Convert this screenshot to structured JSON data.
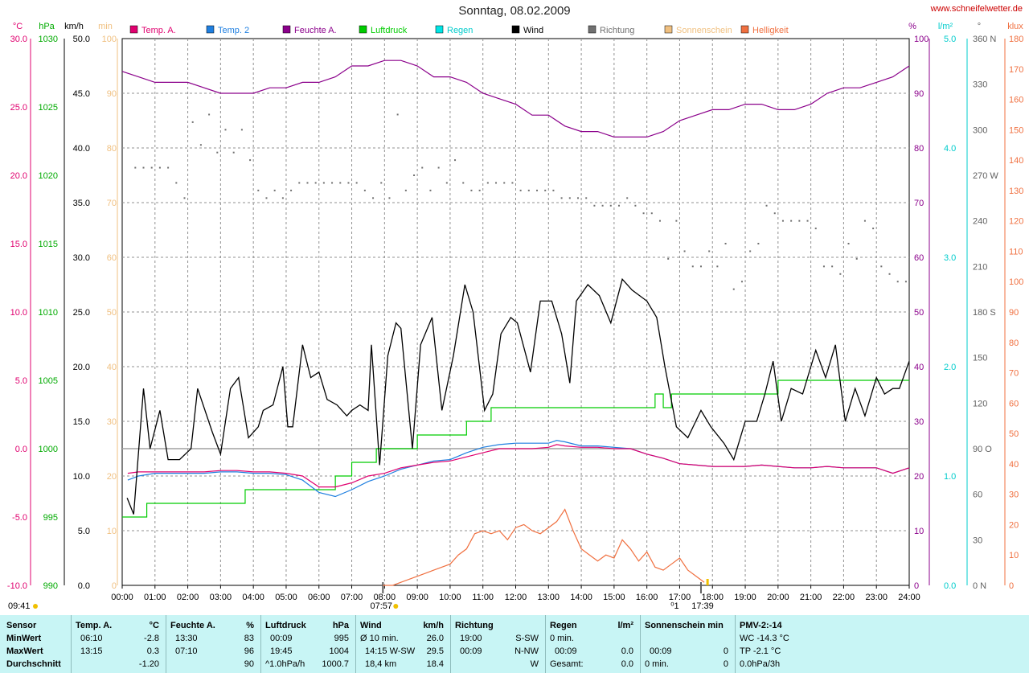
{
  "title": "Sonntag, 08.02.2009",
  "site": "www.schneifelwetter.de",
  "colors": {
    "temp_a": "#e0006f",
    "temp_2": "#1f7fe0",
    "feuchte": "#8b008b",
    "luftdruck": "#00cc00",
    "regen": "#00e5e5",
    "wind": "#000000",
    "richtung": "#707070",
    "sonnenschein": "#f0c080",
    "helligkeit": "#f07040"
  },
  "legend": [
    {
      "label": "Temp. A.",
      "color": "#e0006f"
    },
    {
      "label": "Temp. 2",
      "color": "#1f7fe0"
    },
    {
      "label": "Feuchte A.",
      "color": "#8b008b"
    },
    {
      "label": "Luftdruck",
      "color": "#00cc00"
    },
    {
      "label": "Regen",
      "color": "#00e5e5"
    },
    {
      "label": "Wind",
      "color": "#000000"
    },
    {
      "label": "Richtung",
      "color": "#707070"
    },
    {
      "label": "Sonnenschein",
      "color": "#f0c080"
    },
    {
      "label": "Helligkeit",
      "color": "#f07040"
    }
  ],
  "axis_units": {
    "temp": "°C",
    "pressure": "hPa",
    "wind": "km/h",
    "sun": "min",
    "humidity": "%",
    "rain": "l/m²",
    "direction": "°",
    "light": "klux"
  },
  "axis_ticks": {
    "temp": [
      "30.0",
      "25.0",
      "20.0",
      "15.0",
      "10.0",
      "5.0",
      "0.0",
      "-5.0",
      "-10.0"
    ],
    "pressure": [
      "1030",
      "1025",
      "1020",
      "1015",
      "1010",
      "1005",
      "1000",
      "995",
      "990"
    ],
    "wind": [
      "50.0",
      "45.0",
      "40.0",
      "35.0",
      "30.0",
      "25.0",
      "20.0",
      "15.0",
      "10.0",
      "5.0",
      "0.0"
    ],
    "sun": [
      "100",
      "90",
      "80",
      "70",
      "60",
      "50",
      "40",
      "30",
      "20",
      "10",
      "0"
    ],
    "humidity": [
      "100",
      "90",
      "80",
      "70",
      "60",
      "50",
      "40",
      "30",
      "20",
      "10",
      "0"
    ],
    "rain": [
      "5.0",
      "4.0",
      "3.0",
      "2.0",
      "1.0",
      "0.0"
    ],
    "direction": [
      "360 N",
      "330",
      "300",
      "270 W",
      "240",
      "210",
      "180 S",
      "150",
      "120",
      "90 O",
      "60",
      "30",
      "0 N"
    ],
    "light": [
      "180",
      "170",
      "160",
      "150",
      "140",
      "130",
      "120",
      "110",
      "100",
      "90",
      "80",
      "70",
      "60",
      "50",
      "40",
      "30",
      "20",
      "10",
      "0"
    ]
  },
  "x_ticks": [
    "00:00",
    "01:00",
    "02:00",
    "03:00",
    "04:00",
    "05:00",
    "06:00",
    "07:00",
    "08:00",
    "09:00",
    "10:00",
    "11:00",
    "12:00",
    "13:00",
    "14:00",
    "15:00",
    "16:00",
    "17:00",
    "18:00",
    "19:00",
    "20:00",
    "21:00",
    "22:00",
    "23:00",
    "24:00"
  ],
  "time_notes": {
    "left": "09:41",
    "sunrise": "07:57",
    "sunset": "17:39",
    "moon_mark": "⁰1"
  },
  "chart_data": {
    "type": "line",
    "x_unit": "hour of day",
    "xlim": [
      0,
      24
    ],
    "series": [
      {
        "name": "Temp. A.",
        "axis": "°C",
        "ylim": [
          -10,
          30
        ],
        "x": [
          0.17,
          0.5,
          1,
          1.5,
          2,
          2.5,
          3,
          3.5,
          4,
          4.5,
          5,
          5.5,
          6,
          6.5,
          7,
          7.5,
          8,
          8.5,
          9,
          9.5,
          10,
          10.5,
          11,
          11.5,
          12,
          12.5,
          13,
          13.25,
          13.5,
          14,
          14.5,
          15,
          15.5,
          16,
          16.5,
          17,
          17.5,
          18,
          18.5,
          19,
          19.5,
          20,
          20.5,
          21,
          21.5,
          22,
          22.5,
          23,
          23.5,
          24
        ],
        "y": [
          -1.8,
          -1.7,
          -1.7,
          -1.7,
          -1.7,
          -1.7,
          -1.6,
          -1.6,
          -1.7,
          -1.7,
          -1.8,
          -2.0,
          -2.8,
          -2.8,
          -2.5,
          -2.0,
          -1.8,
          -1.4,
          -1.2,
          -1.0,
          -0.9,
          -0.6,
          -0.3,
          0.0,
          0.0,
          0.0,
          0.1,
          0.3,
          0.2,
          0.1,
          0.1,
          0.0,
          0.0,
          -0.4,
          -0.7,
          -1.1,
          -1.2,
          -1.3,
          -1.3,
          -1.3,
          -1.2,
          -1.3,
          -1.4,
          -1.4,
          -1.3,
          -1.4,
          -1.4,
          -1.4,
          -1.8,
          -1.4
        ]
      },
      {
        "name": "Temp. 2",
        "axis": "°C",
        "ylim": [
          -10,
          30
        ],
        "x": [
          0.17,
          0.5,
          1,
          1.5,
          2,
          2.5,
          3,
          3.5,
          4,
          4.5,
          5,
          5.5,
          6,
          6.5,
          7,
          7.5,
          8,
          8.5,
          9,
          9.5,
          10,
          10.5,
          11,
          11.5,
          12,
          12.5,
          13,
          13.25,
          13.5,
          14,
          14.5,
          15,
          15.5,
          16,
          16.5,
          17,
          17.5,
          18,
          18.5,
          19,
          19.5,
          20,
          20.5,
          21,
          21.5,
          22,
          22.5,
          23,
          23.5,
          24
        ],
        "y": [
          -2.3,
          -2.0,
          -1.8,
          -1.8,
          -1.8,
          -1.8,
          -1.7,
          -1.7,
          -1.8,
          -1.8,
          -1.9,
          -2.3,
          -3.2,
          -3.5,
          -3.0,
          -2.4,
          -2.0,
          -1.5,
          -1.2,
          -0.9,
          -0.8,
          -0.3,
          0.1,
          0.3,
          0.4,
          0.4,
          0.4,
          0.6,
          0.5,
          0.2,
          0.2,
          0.1,
          0.0,
          -0.4,
          -0.7,
          -1.1,
          -1.2,
          -1.3,
          -1.3,
          -1.3,
          -1.2,
          -1.3,
          -1.4,
          -1.4,
          -1.3,
          -1.4,
          -1.4,
          -1.4,
          -1.8,
          -1.4
        ]
      },
      {
        "name": "Feuchte A.",
        "axis": "%",
        "ylim": [
          0,
          100
        ],
        "x": [
          0,
          0.5,
          1,
          1.5,
          2,
          2.5,
          3,
          3.5,
          4,
          4.5,
          5,
          5.5,
          6,
          6.5,
          7,
          7.5,
          8,
          8.5,
          9,
          9.5,
          10,
          10.5,
          11,
          11.5,
          12,
          12.5,
          13,
          13.5,
          14,
          14.5,
          15,
          15.5,
          16,
          16.5,
          17,
          17.5,
          18,
          18.5,
          19,
          19.5,
          20,
          20.5,
          21,
          21.5,
          22,
          22.5,
          23,
          23.5,
          24
        ],
        "y": [
          94,
          93,
          92,
          92,
          92,
          91,
          90,
          90,
          90,
          91,
          91,
          92,
          92,
          93,
          95,
          95,
          96,
          96,
          95,
          93,
          93,
          92,
          90,
          89,
          88,
          86,
          86,
          84,
          83,
          83,
          82,
          82,
          82,
          83,
          85,
          86,
          87,
          87,
          88,
          88,
          87,
          87,
          88,
          90,
          91,
          91,
          92,
          93,
          95
        ]
      },
      {
        "name": "Luftdruck",
        "axis": "hPa",
        "ylim": [
          990,
          1030
        ],
        "x": [
          0,
          0.5,
          0.75,
          2,
          3,
          3.75,
          4,
          5,
          6,
          6.25,
          6.5,
          7,
          7.25,
          7.75,
          8,
          8.5,
          9,
          9.75,
          10,
          10.5,
          11,
          11.25,
          11.5,
          12,
          13,
          14,
          15,
          15.5,
          16,
          16.25,
          16.5,
          16.75,
          17,
          18,
          19,
          19.5,
          19.75,
          20,
          20.5,
          21,
          22,
          23,
          24
        ],
        "y": [
          995,
          995,
          996,
          996,
          996,
          997,
          997,
          997,
          997,
          997,
          998,
          999,
          999,
          1000,
          1000,
          1000,
          1001,
          1001,
          1001,
          1002,
          1002,
          1003,
          1003,
          1003,
          1003,
          1003,
          1003,
          1003,
          1003,
          1004,
          1003,
          1004,
          1004,
          1004,
          1004,
          1004,
          1004,
          1005,
          1005,
          1005,
          1005,
          1005,
          1005
        ]
      },
      {
        "name": "Wind",
        "axis": "km/h",
        "ylim": [
          0,
          50
        ],
        "x": [
          0.15,
          0.35,
          0.65,
          0.85,
          1.15,
          1.4,
          1.75,
          2.1,
          2.3,
          2.75,
          3.0,
          3.3,
          3.55,
          3.85,
          4.15,
          4.3,
          4.6,
          4.9,
          5.05,
          5.2,
          5.5,
          5.75,
          6.0,
          6.25,
          6.55,
          6.85,
          7.0,
          7.25,
          7.5,
          7.6,
          7.85,
          8.1,
          8.35,
          8.5,
          8.85,
          9.1,
          9.45,
          9.75,
          10.1,
          10.45,
          10.7,
          11.05,
          11.3,
          11.55,
          11.85,
          12.05,
          12.45,
          12.75,
          13.1,
          13.4,
          13.65,
          13.85,
          14.2,
          14.55,
          14.9,
          15.25,
          15.55,
          16.0,
          16.3,
          16.55,
          16.9,
          17.25,
          17.65,
          17.95,
          18.35,
          18.65,
          19.0,
          19.35,
          19.6,
          19.85,
          20.1,
          20.4,
          20.75,
          21.15,
          21.45,
          21.75,
          22.05,
          22.35,
          22.65,
          23.0,
          23.25,
          23.5,
          23.7,
          24.0
        ],
        "y": [
          8,
          6.5,
          18,
          12.5,
          16,
          11.5,
          11.5,
          12.5,
          18,
          14,
          12,
          18,
          19,
          13.5,
          14.5,
          16,
          16.5,
          20,
          14.5,
          14.5,
          22,
          19,
          19.5,
          17,
          16.5,
          15.5,
          16,
          16.5,
          16,
          22,
          11,
          21,
          24,
          23.5,
          12.5,
          22,
          24.5,
          16,
          21,
          27.5,
          25,
          16,
          17.5,
          23,
          24.5,
          24,
          19.5,
          26,
          26,
          23,
          18.5,
          26,
          27.5,
          26.5,
          24,
          28,
          27,
          26,
          24.5,
          20,
          14.5,
          13.5,
          16,
          14.5,
          13,
          11.5,
          15,
          15,
          17.5,
          20.5,
          15,
          18,
          17.5,
          21.5,
          19,
          22,
          15,
          18,
          15.5,
          19,
          17.5,
          18,
          18,
          20.5
        ]
      },
      {
        "name": "Richtung",
        "axis": "°",
        "ylim": [
          0,
          360
        ],
        "x": [
          0.4,
          0.65,
          0.9,
          1.15,
          1.4,
          1.65,
          1.9,
          2.15,
          2.4,
          2.65,
          2.9,
          3.15,
          3.4,
          3.65,
          3.9,
          4.15,
          4.4,
          4.65,
          4.9,
          5.15,
          5.4,
          5.65,
          5.9,
          6.15,
          6.4,
          6.65,
          6.9,
          7.15,
          7.4,
          7.65,
          7.9,
          8.15,
          8.4,
          8.65,
          8.9,
          9.15,
          9.4,
          9.65,
          9.9,
          10.15,
          10.4,
          10.65,
          10.9,
          11.15,
          11.4,
          11.65,
          11.9,
          12.15,
          12.4,
          12.65,
          12.9,
          13.15,
          13.4,
          13.65,
          13.9,
          14.15,
          14.4,
          14.65,
          14.9,
          15.15,
          15.4,
          15.65,
          15.9,
          16.15,
          16.4,
          16.65,
          16.9,
          17.15,
          17.4,
          17.65,
          17.9,
          18.15,
          18.4,
          18.65,
          18.9,
          19.15,
          19.4,
          19.65,
          19.9,
          20.15,
          20.4,
          20.65,
          20.9,
          21.15,
          21.4,
          21.65,
          21.9,
          22.15,
          22.4,
          22.65,
          22.9,
          23.15,
          23.4,
          23.65,
          23.9
        ],
        "y": [
          275,
          275,
          275,
          275,
          275,
          265,
          255,
          305,
          290,
          310,
          285,
          300,
          285,
          300,
          280,
          260,
          255,
          260,
          255,
          260,
          265,
          265,
          265,
          265,
          265,
          265,
          265,
          265,
          260,
          255,
          265,
          255,
          310,
          260,
          270,
          275,
          260,
          275,
          265,
          280,
          265,
          260,
          260,
          265,
          265,
          265,
          265,
          260,
          260,
          260,
          260,
          260,
          255,
          255,
          255,
          255,
          250,
          250,
          250,
          250,
          255,
          250,
          245,
          245,
          240,
          215,
          240,
          220,
          210,
          210,
          220,
          210,
          225,
          195,
          200,
          220,
          225,
          250,
          245,
          240,
          240,
          240,
          240,
          235,
          210,
          210,
          205,
          225,
          215,
          240,
          235,
          210,
          205,
          200,
          200
        ]
      },
      {
        "name": "Helligkeit",
        "axis": "klux",
        "ylim": [
          0,
          180
        ],
        "x": [
          7.95,
          8.25,
          8.5,
          8.75,
          9.0,
          9.25,
          9.5,
          9.75,
          10.0,
          10.25,
          10.5,
          10.75,
          11.0,
          11.25,
          11.5,
          11.75,
          12.0,
          12.25,
          12.5,
          12.75,
          13.0,
          13.25,
          13.5,
          13.75,
          14.0,
          14.25,
          14.5,
          14.75,
          15.0,
          15.25,
          15.5,
          15.75,
          16.0,
          16.25,
          16.5,
          16.75,
          17.0,
          17.25,
          17.5,
          17.75
        ],
        "y": [
          0,
          0,
          1,
          2,
          3,
          4,
          5,
          6,
          7,
          10,
          12,
          17,
          18,
          17,
          18,
          15,
          19,
          20,
          18,
          17,
          19,
          21,
          25,
          18,
          12,
          10,
          8,
          10,
          9,
          15,
          12,
          8,
          11,
          6,
          5,
          7,
          9,
          5,
          3,
          1
        ]
      }
    ],
    "title": "Sonntag, 08.02.2009"
  },
  "stats": {
    "sensor": {
      "header": "Sensor",
      "rows": [
        "MinWert",
        "MaxWert",
        "Durchschnitt"
      ]
    },
    "temp": {
      "header": "Temp. A.",
      "unit": "°C",
      "rows": [
        [
          "06:10",
          "-2.8"
        ],
        [
          "13:15",
          "0.3"
        ],
        [
          "",
          "-1.20"
        ]
      ]
    },
    "feuchte": {
      "header": "Feuchte A.",
      "unit": "%",
      "rows": [
        [
          "13:30",
          "83"
        ],
        [
          "07:10",
          "96"
        ],
        [
          "",
          "90"
        ]
      ]
    },
    "luftdruck": {
      "header": "Luftdruck",
      "unit": "hPa",
      "rows": [
        [
          "00:09",
          "995"
        ],
        [
          "19:45",
          "1004"
        ],
        [
          "^1.0hPa/h",
          "1000.7"
        ]
      ]
    },
    "wind": {
      "header": "Wind",
      "unit": "km/h",
      "rows": [
        [
          "Ø 10 min.",
          "26.0"
        ],
        [
          "14:15  W-SW",
          "29.5"
        ],
        [
          "18,4 km",
          "18.4"
        ]
      ]
    },
    "richtung": {
      "header": "Richtung",
      "unit": "",
      "rows": [
        [
          "19:00",
          "S-SW"
        ],
        [
          "00:09",
          "N-NW"
        ],
        [
          "",
          "W"
        ]
      ]
    },
    "regen": {
      "header": "Regen",
      "unit": "l/m²",
      "rows": [
        [
          "0 min.",
          ""
        ],
        [
          "00:09",
          "0.0"
        ],
        [
          "Gesamt:",
          "0.0"
        ]
      ]
    },
    "sonne": {
      "header": "Sonnenschein min",
      "unit": "",
      "rows": [
        [
          "",
          ""
        ],
        [
          "00:09",
          "0"
        ],
        [
          "0 min.",
          "0"
        ]
      ]
    },
    "pmv": {
      "header": "PMV-2:-14",
      "rows": [
        "WC -14.3 °C",
        "TP -2.1 °C",
        "0.0hPa/3h"
      ]
    }
  }
}
